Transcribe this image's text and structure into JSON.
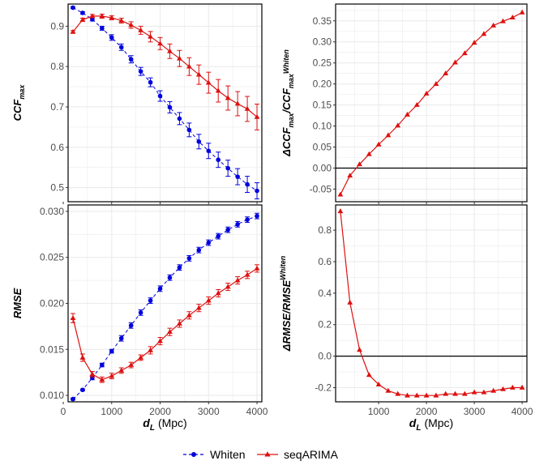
{
  "colors": {
    "whiten": "#0000dd",
    "seqarima": "#dd1111",
    "grid": "#ebebeb",
    "zero_line": "#000000"
  },
  "legend": {
    "position": "bottom",
    "items": [
      "Whiten",
      "seqARIMA"
    ]
  },
  "x_axis_label": {
    "symbol": "d",
    "subscript": "L",
    "unit": "(Mpc)"
  },
  "chart_data": [
    {
      "id": "ccf",
      "type": "line",
      "ylabel": "CCF_max",
      "ylim": [
        0.465,
        0.955
      ],
      "yticks": [
        0.5,
        0.6,
        0.7,
        0.8,
        0.9
      ],
      "xlim": [
        100,
        4100
      ],
      "xticks": [
        0,
        1000,
        2000,
        3000,
        4000
      ],
      "show_x_ticklabels": false,
      "series": [
        {
          "name": "Whiten",
          "marker": "circle",
          "dashed": true,
          "x": [
            200,
            400,
            600,
            800,
            1000,
            1200,
            1400,
            1600,
            1800,
            2000,
            2200,
            2400,
            2600,
            2800,
            3000,
            3200,
            3400,
            3600,
            3800,
            4000
          ],
          "y": [
            0.946,
            0.933,
            0.917,
            0.895,
            0.872,
            0.848,
            0.818,
            0.788,
            0.761,
            0.727,
            0.699,
            0.671,
            0.643,
            0.614,
            0.591,
            0.569,
            0.548,
            0.527,
            0.508,
            0.492
          ],
          "err": [
            0.002,
            0.003,
            0.004,
            0.005,
            0.007,
            0.008,
            0.009,
            0.01,
            0.011,
            0.013,
            0.014,
            0.015,
            0.017,
            0.018,
            0.019,
            0.019,
            0.02,
            0.02,
            0.02,
            0.02
          ]
        },
        {
          "name": "seqARIMA",
          "marker": "triangle",
          "dashed": false,
          "x": [
            200,
            400,
            600,
            800,
            1000,
            1200,
            1400,
            1600,
            1800,
            2000,
            2200,
            2400,
            2600,
            2800,
            3000,
            3200,
            3400,
            3600,
            3800,
            4000
          ],
          "y": [
            0.886,
            0.916,
            0.925,
            0.925,
            0.921,
            0.914,
            0.903,
            0.89,
            0.874,
            0.857,
            0.838,
            0.82,
            0.8,
            0.78,
            0.76,
            0.74,
            0.722,
            0.708,
            0.695,
            0.675
          ],
          "err": [
            0.003,
            0.004,
            0.004,
            0.005,
            0.005,
            0.006,
            0.008,
            0.01,
            0.013,
            0.015,
            0.018,
            0.02,
            0.022,
            0.024,
            0.026,
            0.028,
            0.03,
            0.03,
            0.031,
            0.032
          ]
        }
      ]
    },
    {
      "id": "dccf",
      "type": "line",
      "ylabel": "ΔCCF_max/CCF_max^Whiten",
      "ylim": [
        -0.08,
        0.39
      ],
      "yticks": [
        -0.05,
        0.0,
        0.05,
        0.1,
        0.15,
        0.2,
        0.25,
        0.3,
        0.35
      ],
      "yticklabels": [
        "-0.05",
        "0.00",
        "0.05",
        "0.10",
        "0.15",
        "0.20",
        "0.25",
        "0.30",
        "0.35"
      ],
      "xlim": [
        100,
        4100
      ],
      "xticks": [
        1000,
        2000,
        3000,
        4000
      ],
      "show_x_ticklabels": false,
      "zero_line": true,
      "series": [
        {
          "name": "seqARIMA",
          "marker": "triangle",
          "dashed": false,
          "x": [
            200,
            400,
            600,
            800,
            1000,
            1200,
            1400,
            1600,
            1800,
            2000,
            2200,
            2400,
            2600,
            2800,
            3000,
            3200,
            3400,
            3600,
            3800,
            4000
          ],
          "y": [
            -0.063,
            -0.018,
            0.009,
            0.033,
            0.056,
            0.078,
            0.101,
            0.127,
            0.15,
            0.177,
            0.2,
            0.225,
            0.251,
            0.273,
            0.298,
            0.319,
            0.339,
            0.349,
            0.358,
            0.37
          ]
        }
      ]
    },
    {
      "id": "rmse",
      "type": "line",
      "ylabel": "RMSE",
      "ylim": [
        0.0093,
        0.0307
      ],
      "yticks": [
        0.01,
        0.015,
        0.02,
        0.025,
        0.03
      ],
      "yticklabels": [
        "0.010",
        "0.015",
        "0.020",
        "0.025",
        "0.030"
      ],
      "xlim": [
        100,
        4100
      ],
      "xticks": [
        0,
        1000,
        2000,
        3000,
        4000
      ],
      "show_x_ticklabels": true,
      "series": [
        {
          "name": "Whiten",
          "marker": "circle",
          "dashed": true,
          "x": [
            200,
            400,
            600,
            800,
            1000,
            1200,
            1400,
            1600,
            1800,
            2000,
            2200,
            2400,
            2600,
            2800,
            3000,
            3200,
            3400,
            3600,
            3800,
            4000
          ],
          "y": [
            0.0096,
            0.0106,
            0.0119,
            0.0133,
            0.0148,
            0.0162,
            0.0176,
            0.019,
            0.0203,
            0.0216,
            0.0228,
            0.0239,
            0.0249,
            0.0258,
            0.0266,
            0.0273,
            0.028,
            0.0286,
            0.0291,
            0.0295
          ],
          "err": [
            0.0001,
            0.0001,
            0.0002,
            0.0002,
            0.0002,
            0.0003,
            0.0003,
            0.0003,
            0.0003,
            0.0003,
            0.0003,
            0.0003,
            0.0003,
            0.0003,
            0.0003,
            0.0003,
            0.0003,
            0.0003,
            0.0003,
            0.0003
          ]
        },
        {
          "name": "seqARIMA",
          "marker": "triangle",
          "dashed": false,
          "x": [
            200,
            400,
            600,
            800,
            1000,
            1200,
            1400,
            1600,
            1800,
            2000,
            2200,
            2400,
            2600,
            2800,
            3000,
            3200,
            3400,
            3600,
            3800,
            4000
          ],
          "y": [
            0.0184,
            0.0141,
            0.0123,
            0.0117,
            0.0121,
            0.0127,
            0.0133,
            0.0141,
            0.0149,
            0.0159,
            0.0169,
            0.0178,
            0.0187,
            0.0195,
            0.0203,
            0.0211,
            0.0218,
            0.0225,
            0.0231,
            0.0238
          ],
          "err": [
            0.0005,
            0.0004,
            0.0003,
            0.0003,
            0.0003,
            0.0003,
            0.0003,
            0.0003,
            0.0004,
            0.0004,
            0.0004,
            0.0004,
            0.0004,
            0.0004,
            0.0004,
            0.0004,
            0.0004,
            0.0004,
            0.0004,
            0.0004
          ]
        }
      ]
    },
    {
      "id": "drmse",
      "type": "line",
      "ylabel": "ΔRMSE/RMSE^Whiten",
      "ylim": [
        -0.29,
        0.96
      ],
      "yticks": [
        -0.2,
        0.0,
        0.2,
        0.4,
        0.6,
        0.8
      ],
      "yticklabels": [
        "-0.2",
        "0.0",
        "0.2",
        "0.4",
        "0.6",
        "0.8"
      ],
      "xlim": [
        100,
        4100
      ],
      "xticks": [
        1000,
        2000,
        3000,
        4000
      ],
      "show_x_ticklabels": true,
      "zero_line": true,
      "series": [
        {
          "name": "seqARIMA",
          "marker": "triangle",
          "dashed": false,
          "x": [
            200,
            400,
            600,
            800,
            1000,
            1200,
            1400,
            1600,
            1800,
            2000,
            2200,
            2400,
            2600,
            2800,
            3000,
            3200,
            3400,
            3600,
            3800,
            4000
          ],
          "y": [
            0.92,
            0.34,
            0.04,
            -0.12,
            -0.18,
            -0.22,
            -0.24,
            -0.25,
            -0.25,
            -0.25,
            -0.25,
            -0.24,
            -0.24,
            -0.24,
            -0.23,
            -0.23,
            -0.22,
            -0.21,
            -0.2,
            -0.2
          ]
        }
      ]
    }
  ]
}
